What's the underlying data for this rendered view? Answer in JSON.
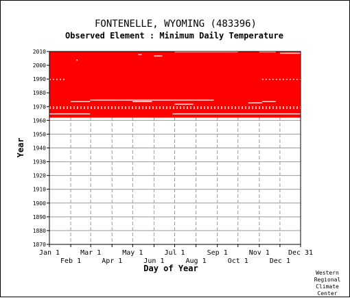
{
  "chart_data": {
    "type": "heatmap",
    "title": "FONTENELLE, WYOMING   (483396)",
    "subtitle": "Observed Element : Minimum Daily Temperature",
    "xlabel": "Day of Year",
    "ylabel": "Year",
    "xlim_days": [
      1,
      366
    ],
    "ylim": [
      1870,
      2010
    ],
    "x_ticks_top": [
      {
        "label": "Jan 1",
        "day": 1
      },
      {
        "label": "Mar 1",
        "day": 61
      },
      {
        "label": "May 1",
        "day": 122
      },
      {
        "label": "Jul 1",
        "day": 183
      },
      {
        "label": "Sep 1",
        "day": 245
      },
      {
        "label": "Nov 1",
        "day": 306
      },
      {
        "label": "Dec 31",
        "day": 366
      }
    ],
    "x_ticks_bottom": [
      {
        "label": "Feb 1",
        "day": 32
      },
      {
        "label": "Apr 1",
        "day": 92
      },
      {
        "label": "Jun 1",
        "day": 153
      },
      {
        "label": "Aug 1",
        "day": 214
      },
      {
        "label": "Oct 1",
        "day": 275
      },
      {
        "label": "Dec 1",
        "day": 336
      }
    ],
    "y_ticks": [
      1870,
      1880,
      1890,
      1900,
      1910,
      1920,
      1930,
      1940,
      1950,
      1960,
      1970,
      1980,
      1990,
      2000,
      2010
    ],
    "grid": true,
    "colors": {
      "observed": "#ff0000",
      "missing": "#ffffff",
      "grid": "#999999"
    },
    "observed_period": {
      "start_year": 1962,
      "end_year": 2010
    },
    "missing_gaps": [
      {
        "year": 1964,
        "day_start": 1,
        "day_end": 60
      },
      {
        "year": 1964,
        "day_start": 180,
        "day_end": 366
      },
      {
        "year": 1968,
        "day_start": 1,
        "day_end": 366,
        "pattern": "dashed"
      },
      {
        "year": 1969,
        "day_start": 1,
        "day_end": 366,
        "pattern": "dashed"
      },
      {
        "year": 1972,
        "day_start": 290,
        "day_end": 310
      },
      {
        "year": 1973,
        "day_start": 32,
        "day_end": 60
      },
      {
        "year": 1973,
        "day_start": 122,
        "day_end": 150
      },
      {
        "year": 1973,
        "day_start": 310,
        "day_end": 330
      },
      {
        "year": 1974,
        "day_start": 60,
        "day_end": 240
      },
      {
        "year": 1971,
        "day_start": 183,
        "day_end": 210
      },
      {
        "year": 1989,
        "day_start": 1,
        "day_end": 25,
        "pattern": "dashed"
      },
      {
        "year": 1989,
        "day_start": 310,
        "day_end": 366,
        "pattern": "dashed"
      },
      {
        "year": 2006,
        "day_start": 153,
        "day_end": 165
      },
      {
        "year": 2009,
        "day_start": 183,
        "day_end": 275
      },
      {
        "year": 2009,
        "day_start": 306,
        "day_end": 330
      },
      {
        "year": 2008,
        "day_start": 336,
        "day_end": 366
      },
      {
        "year": 2007,
        "day_start": 130,
        "day_end": 135
      },
      {
        "year": 2003,
        "day_start": 40,
        "day_end": 42
      }
    ]
  },
  "credit": [
    "Western",
    "Regional",
    "Climate",
    "Center"
  ]
}
